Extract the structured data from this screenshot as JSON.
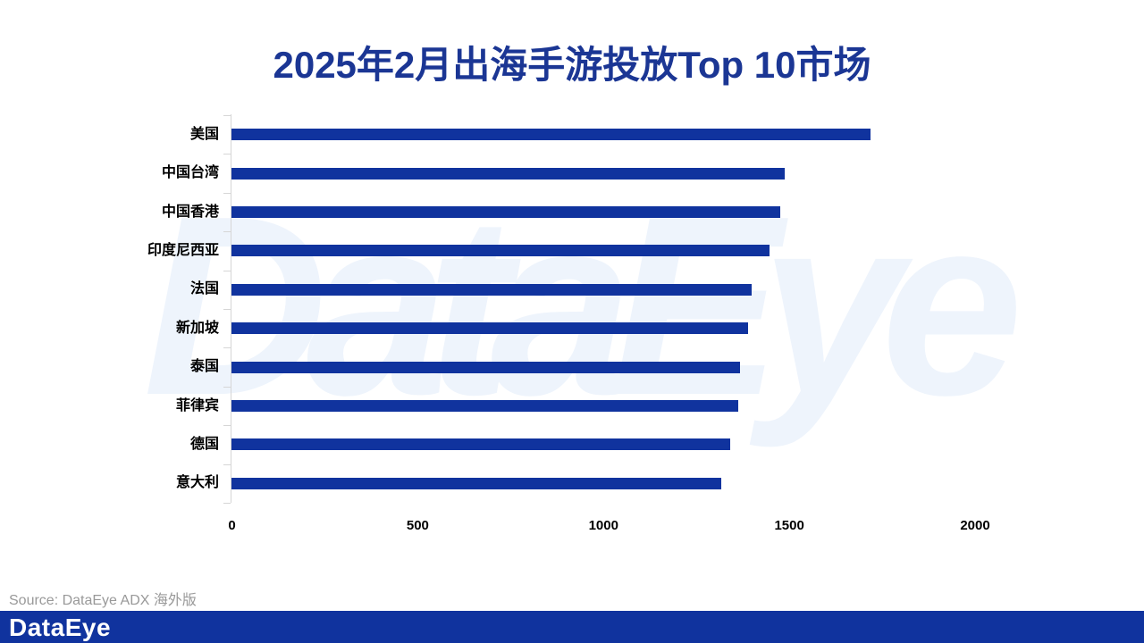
{
  "chart_data": {
    "type": "bar",
    "orientation": "horizontal",
    "title": "2025年2月出海手游投放Top 10市场",
    "categories": [
      "美国",
      "中国台湾",
      "中国香港",
      "印度尼西亚",
      "法国",
      "新加坡",
      "泰国",
      "菲律宾",
      "德国",
      "意大利"
    ],
    "values": [
      1720,
      1490,
      1478,
      1449,
      1400,
      1390,
      1369,
      1363,
      1343,
      1318
    ],
    "xlabel": "",
    "ylabel": "",
    "xlim": [
      0,
      2000
    ],
    "x_ticks": [
      0,
      500,
      1000,
      1500,
      2000
    ],
    "grid": false,
    "bar_color": "#10339e",
    "title_color": "#1b3694"
  },
  "watermark": {
    "text": "DataEye"
  },
  "footer": {
    "source": "Source: DataEye ADX 海外版",
    "logo": "DataEye"
  }
}
